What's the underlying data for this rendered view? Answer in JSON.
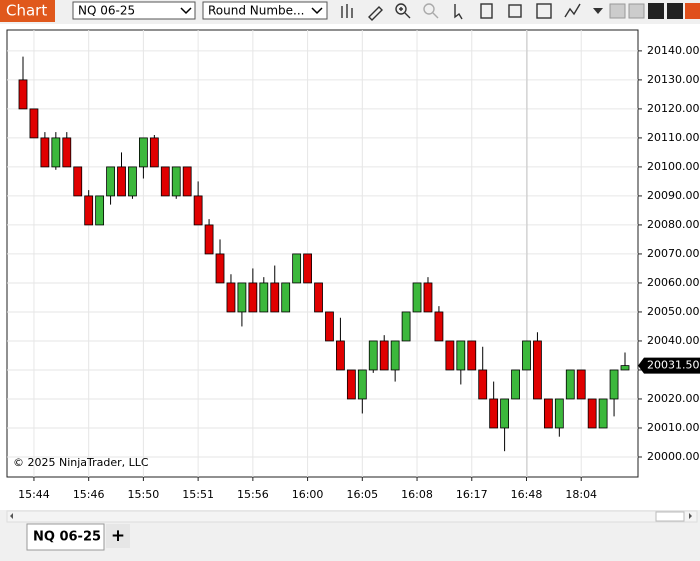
{
  "toolbar": {
    "tab": "Chart",
    "instrument": "NQ 06-25",
    "drawing": "Round Numbe..."
  },
  "copyright": "© 2025 NinjaTrader, LLC",
  "bottom_tab": {
    "label": "NQ 06-25",
    "add": "+"
  },
  "chart_data": {
    "type": "candlestick",
    "categories": [
      null,
      "15:44",
      null,
      null,
      null,
      null,
      "15:46",
      null,
      null,
      null,
      null,
      "15:50",
      null,
      null,
      null,
      null,
      "15:51",
      null,
      null,
      null,
      null,
      "15:56",
      null,
      null,
      null,
      null,
      "16:00",
      null,
      null,
      null,
      null,
      "16:05",
      null,
      null,
      null,
      null,
      "16:08",
      null,
      null,
      null,
      null,
      "16:17",
      null,
      null,
      null,
      null,
      "16:48",
      null,
      null,
      null,
      null,
      "18:04",
      null,
      null,
      null,
      null
    ],
    "series": [
      {
        "name": "NQ 06-25",
        "up_color": "#3cb83c",
        "down_color": "#e00000",
        "open": [
          20130,
          20120,
          20110,
          20100,
          20110,
          20100,
          20090,
          20080,
          20090,
          20100,
          20090,
          20100,
          20110,
          20100,
          20090,
          20100,
          20090,
          20080,
          20070,
          20060,
          20050,
          20060,
          20050,
          20060,
          20050,
          20060,
          20070,
          20060,
          20050,
          20040,
          20030,
          20020,
          20030,
          20040,
          20030,
          20040,
          20050,
          20060,
          20050,
          20040,
          20030,
          20040,
          20030,
          20020,
          20010,
          20020,
          20030,
          20040,
          20020,
          20010,
          20020,
          20030,
          20020,
          20010,
          20020,
          20030
        ],
        "high": [
          20138,
          20120,
          20112,
          20112,
          20112,
          20100,
          20092,
          20090,
          20100,
          20105,
          20100,
          20110,
          20111,
          20100,
          20100,
          20100,
          20095,
          20082,
          20075,
          20063,
          20060,
          20065,
          20062,
          20066,
          20060,
          20070,
          20070,
          20060,
          20050,
          20048,
          20030,
          20030,
          20040,
          20042,
          20040,
          20050,
          20060,
          20062,
          20052,
          20040,
          20040,
          20040,
          20038,
          20026,
          20020,
          20030,
          20040,
          20043,
          20020,
          20020,
          20030,
          20030,
          20020,
          20020,
          20030,
          20036
        ],
        "low": [
          20120,
          20110,
          20100,
          20099,
          20100,
          20090,
          20080,
          20080,
          20087,
          20090,
          20089,
          20096,
          20100,
          20090,
          20089,
          20090,
          20080,
          20070,
          20060,
          20050,
          20045,
          20050,
          20050,
          20050,
          20050,
          20060,
          20060,
          20050,
          20040,
          20030,
          20020,
          20015,
          20029,
          20030,
          20026,
          20040,
          20050,
          20050,
          20040,
          20030,
          20025,
          20030,
          20020,
          20010,
          20002,
          20020,
          20030,
          20020,
          20010,
          20007,
          20020,
          20020,
          20010,
          20010,
          20014,
          20030
        ],
        "close": [
          20120,
          20110,
          20100,
          20110,
          20100,
          20090,
          20080,
          20090,
          20100,
          20090,
          20100,
          20110,
          20100,
          20090,
          20100,
          20090,
          20080,
          20070,
          20060,
          20050,
          20060,
          20050,
          20060,
          20050,
          20060,
          20070,
          20060,
          20050,
          20040,
          20030,
          20020,
          20030,
          20040,
          20030,
          20040,
          20050,
          20060,
          20050,
          20040,
          20030,
          20040,
          20030,
          20020,
          20010,
          20020,
          20030,
          20040,
          20020,
          20010,
          20020,
          20030,
          20020,
          20010,
          20020,
          20030,
          20031.5
        ]
      }
    ],
    "last_price": {
      "value": 20031.5,
      "label": "20031.50"
    },
    "ylim": [
      19993.1,
      20147.2
    ],
    "yticks": [
      {
        "value": 20000,
        "label": "20000.00"
      },
      {
        "value": 20010,
        "label": "20010.00"
      },
      {
        "value": 20020,
        "label": "20020.00"
      },
      {
        "value": 20030,
        "label": "20030.00"
      },
      {
        "value": 20040,
        "label": "20040.00"
      },
      {
        "value": 20050,
        "label": "20050.00"
      },
      {
        "value": 20060,
        "label": "20060.00"
      },
      {
        "value": 20070,
        "label": "20070.00"
      },
      {
        "value": 20080,
        "label": "20080.00"
      },
      {
        "value": 20090,
        "label": "20090.00"
      },
      {
        "value": 20100,
        "label": "20100.00"
      },
      {
        "value": 20110,
        "label": "20110.00"
      },
      {
        "value": 20120,
        "label": "20120.00"
      },
      {
        "value": 20130,
        "label": "20130.00"
      },
      {
        "value": 20140,
        "label": "20140.00"
      }
    ],
    "grid": true
  }
}
